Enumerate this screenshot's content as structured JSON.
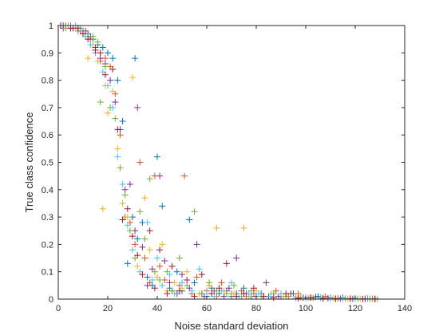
{
  "chart_data": {
    "type": "scatter",
    "title": "",
    "xlabel": "Noise standard deviation",
    "ylabel": "True class confidence",
    "xlim": [
      0,
      140
    ],
    "ylim": [
      0,
      1
    ],
    "xticks": [
      0,
      20,
      40,
      60,
      80,
      100,
      120,
      140
    ],
    "yticks": [
      0,
      0.1,
      0.2,
      0.3,
      0.4,
      0.5,
      0.6,
      0.7,
      0.8,
      0.9,
      1
    ],
    "xtick_labels": [
      "0",
      "20",
      "40",
      "60",
      "80",
      "100",
      "120",
      "140"
    ],
    "ytick_labels": [
      "0",
      "0.1",
      "0.2",
      "0.3",
      "0.4",
      "0.5",
      "0.6",
      "0.7",
      "0.8",
      "0.9",
      "1"
    ],
    "grid": false,
    "marker": "+",
    "series": [
      {
        "color": "#0072BD",
        "points": [
          [
            2,
            1
          ],
          [
            5,
            1
          ],
          [
            8,
            0.99
          ],
          [
            10,
            0.98
          ],
          [
            12,
            0.97
          ],
          [
            14,
            0.95
          ],
          [
            16,
            0.93
          ],
          [
            18,
            0.92
          ],
          [
            20,
            0.9
          ],
          [
            22,
            0.88
          ],
          [
            24,
            0.8
          ],
          [
            26,
            0.65
          ],
          [
            28,
            0.13
          ],
          [
            30,
            0.3
          ],
          [
            31,
            0.88
          ],
          [
            32,
            0.22
          ],
          [
            34,
            0.28
          ],
          [
            36,
            0.08
          ],
          [
            38,
            0.05
          ],
          [
            40,
            0.52
          ],
          [
            42,
            0.34
          ],
          [
            45,
            0.04
          ],
          [
            48,
            0.1
          ],
          [
            50,
            0.03
          ],
          [
            53,
            0.29
          ],
          [
            55,
            0.06
          ],
          [
            58,
            0.02
          ],
          [
            60,
            0.01
          ],
          [
            62,
            0.04
          ],
          [
            65,
            0.02
          ],
          [
            68,
            0.03
          ],
          [
            70,
            0.01
          ],
          [
            72,
            0.02
          ],
          [
            75,
            0.04
          ],
          [
            78,
            0.01
          ],
          [
            82,
            0.02
          ],
          [
            85,
            0.01
          ],
          [
            90,
            0.01
          ],
          [
            95,
            0.02
          ],
          [
            100,
            0.005
          ],
          [
            105,
            0.01
          ],
          [
            110,
            0.005
          ],
          [
            115,
            0.005
          ],
          [
            120,
            0.003
          ],
          [
            125,
            0.002
          ],
          [
            128,
            0.001
          ]
        ]
      },
      {
        "color": "#D95319",
        "points": [
          [
            3,
            1
          ],
          [
            6,
            0.99
          ],
          [
            9,
            0.99
          ],
          [
            11,
            0.97
          ],
          [
            13,
            0.95
          ],
          [
            15,
            0.9
          ],
          [
            17,
            0.87
          ],
          [
            19,
            0.88
          ],
          [
            21,
            0.85
          ],
          [
            23,
            0.75
          ],
          [
            25,
            0.6
          ],
          [
            27,
            0.3
          ],
          [
            29,
            0.28
          ],
          [
            31,
            0.2
          ],
          [
            33,
            0.5
          ],
          [
            35,
            0.15
          ],
          [
            37,
            0.06
          ],
          [
            39,
            0.45
          ],
          [
            41,
            0.12
          ],
          [
            43,
            0.07
          ],
          [
            46,
            0.03
          ],
          [
            49,
            0.05
          ],
          [
            51,
            0.45
          ],
          [
            54,
            0.02
          ],
          [
            56,
            0.08
          ],
          [
            60,
            0.03
          ],
          [
            64,
            0.01
          ],
          [
            66,
            0.06
          ],
          [
            70,
            0.02
          ],
          [
            74,
            0.03
          ],
          [
            76,
            0.01
          ],
          [
            79,
            0.02
          ],
          [
            83,
            0.01
          ],
          [
            88,
            0.03
          ],
          [
            93,
            0.01
          ],
          [
            97,
            0.02
          ],
          [
            102,
            0.005
          ],
          [
            108,
            0.01
          ],
          [
            113,
            0.003
          ],
          [
            118,
            0.002
          ],
          [
            124,
            0.001
          ],
          [
            127,
            0.001
          ]
        ]
      },
      {
        "color": "#EDB120",
        "points": [
          [
            1,
            1
          ],
          [
            4,
            1
          ],
          [
            7,
            0.99
          ],
          [
            10,
            0.97
          ],
          [
            12,
            0.88
          ],
          [
            14,
            0.93
          ],
          [
            16,
            0.87
          ],
          [
            18,
            0.33
          ],
          [
            19,
            0.78
          ],
          [
            20,
            0.68
          ],
          [
            22,
            0.76
          ],
          [
            24,
            0.55
          ],
          [
            26,
            0.35
          ],
          [
            28,
            0.3
          ],
          [
            30,
            0.81
          ],
          [
            32,
            0.12
          ],
          [
            35,
            0.37
          ],
          [
            37,
            0.18
          ],
          [
            40,
            0.08
          ],
          [
            42,
            0.2
          ],
          [
            44,
            0.03
          ],
          [
            47,
            0.06
          ],
          [
            50,
            0.04
          ],
          [
            52,
            0.1
          ],
          [
            57,
            0.02
          ],
          [
            61,
            0.05
          ],
          [
            64,
            0.26
          ],
          [
            67,
            0.03
          ],
          [
            71,
            0.02
          ],
          [
            75,
            0.26
          ],
          [
            77,
            0.01
          ],
          [
            80,
            0.03
          ],
          [
            86,
            0.02
          ],
          [
            91,
            0.01
          ],
          [
            96,
            0.01
          ],
          [
            101,
            0.004
          ],
          [
            106,
            0.006
          ],
          [
            111,
            0.003
          ],
          [
            117,
            0.002
          ],
          [
            122,
            0.001
          ],
          [
            126,
            0.001
          ]
        ]
      },
      {
        "color": "#7E2F8E",
        "points": [
          [
            2,
            0.99
          ],
          [
            6,
            0.99
          ],
          [
            9,
            0.98
          ],
          [
            11,
            0.98
          ],
          [
            13,
            0.96
          ],
          [
            15,
            0.92
          ],
          [
            17,
            0.88
          ],
          [
            19,
            0.86
          ],
          [
            21,
            0.8
          ],
          [
            23,
            0.72
          ],
          [
            25,
            0.62
          ],
          [
            27,
            0.4
          ],
          [
            29,
            0.42
          ],
          [
            31,
            0.25
          ],
          [
            32,
            0.7
          ],
          [
            34,
            0.19
          ],
          [
            36,
            0.05
          ],
          [
            38,
            0.11
          ],
          [
            41,
            0.45
          ],
          [
            43,
            0.14
          ],
          [
            45,
            0.06
          ],
          [
            48,
            0.02
          ],
          [
            50,
            0.09
          ],
          [
            53,
            0.04
          ],
          [
            56,
            0.2
          ],
          [
            59,
            0.01
          ],
          [
            63,
            0.03
          ],
          [
            67,
            0.01
          ],
          [
            69,
            0.04
          ],
          [
            72,
            0.15
          ],
          [
            76,
            0.02
          ],
          [
            80,
            0.01
          ],
          [
            84,
            0.06
          ],
          [
            89,
            0.01
          ],
          [
            94,
            0.02
          ],
          [
            99,
            0.005
          ],
          [
            104,
            0.008
          ],
          [
            109,
            0.003
          ],
          [
            114,
            0.002
          ],
          [
            119,
            0.001
          ],
          [
            124,
            0.001
          ]
        ]
      },
      {
        "color": "#77AC30",
        "points": [
          [
            3,
            0.99
          ],
          [
            5,
            1
          ],
          [
            8,
            0.98
          ],
          [
            10,
            0.98
          ],
          [
            12,
            0.96
          ],
          [
            14,
            0.96
          ],
          [
            16,
            0.94
          ],
          [
            17,
            0.72
          ],
          [
            19,
            0.85
          ],
          [
            21,
            0.7
          ],
          [
            23,
            0.66
          ],
          [
            25,
            0.48
          ],
          [
            27,
            0.38
          ],
          [
            29,
            0.25
          ],
          [
            31,
            0.15
          ],
          [
            33,
            0.32
          ],
          [
            35,
            0.22
          ],
          [
            37,
            0.44
          ],
          [
            39,
            0.1
          ],
          [
            41,
            0.07
          ],
          [
            44,
            0.1
          ],
          [
            46,
            0.03
          ],
          [
            49,
            0.15
          ],
          [
            52,
            0.05
          ],
          [
            55,
            0.32
          ],
          [
            58,
            0.02
          ],
          [
            61,
            0.06
          ],
          [
            64,
            0.03
          ],
          [
            68,
            0.02
          ],
          [
            71,
            0.05
          ],
          [
            74,
            0.01
          ],
          [
            78,
            0.03
          ],
          [
            82,
            0.01
          ],
          [
            87,
            0.02
          ],
          [
            92,
            0.01
          ],
          [
            98,
            0.006
          ],
          [
            103,
            0.004
          ],
          [
            107,
            0.005
          ],
          [
            112,
            0.002
          ],
          [
            116,
            0.002
          ],
          [
            121,
            0.001
          ],
          [
            126,
            0.001
          ],
          [
            129,
            0.0005
          ]
        ]
      },
      {
        "color": "#4DBEEE",
        "points": [
          [
            4,
            1
          ],
          [
            7,
            1
          ],
          [
            9,
            0.99
          ],
          [
            11,
            0.96
          ],
          [
            13,
            0.93
          ],
          [
            15,
            0.9
          ],
          [
            18,
            0.83
          ],
          [
            20,
            0.78
          ],
          [
            22,
            0.7
          ],
          [
            24,
            0.52
          ],
          [
            26,
            0.42
          ],
          [
            28,
            0.27
          ],
          [
            30,
            0.18
          ],
          [
            33,
            0.1
          ],
          [
            36,
            0.28
          ],
          [
            38,
            0.07
          ],
          [
            40,
            0.15
          ],
          [
            42,
            0.05
          ],
          [
            45,
            0.09
          ],
          [
            47,
            0.02
          ],
          [
            50,
            0.06
          ],
          [
            54,
            0.03
          ],
          [
            57,
            0.11
          ],
          [
            60,
            0.02
          ],
          [
            63,
            0.01
          ],
          [
            66,
            0.03
          ],
          [
            70,
            0.06
          ],
          [
            73,
            0.01
          ],
          [
            77,
            0.02
          ],
          [
            81,
            0.02
          ],
          [
            86,
            0.01
          ],
          [
            90,
            0.02
          ],
          [
            96,
            0.004
          ],
          [
            100,
            0.003
          ],
          [
            106,
            0.005
          ],
          [
            110,
            0.002
          ],
          [
            115,
            0.001
          ],
          [
            120,
            0.001
          ],
          [
            125,
            0.0008
          ]
        ]
      },
      {
        "color": "#A2142F",
        "points": [
          [
            1,
            1
          ],
          [
            5,
            0.99
          ],
          [
            8,
            0.99
          ],
          [
            10,
            0.97
          ],
          [
            12,
            0.95
          ],
          [
            15,
            0.91
          ],
          [
            17,
            0.9
          ],
          [
            19,
            0.82
          ],
          [
            22,
            0.84
          ],
          [
            24,
            0.62
          ],
          [
            26,
            0.29
          ],
          [
            28,
            0.33
          ],
          [
            30,
            0.23
          ],
          [
            32,
            0.16
          ],
          [
            34,
            0.09
          ],
          [
            37,
            0.25
          ],
          [
            39,
            0.04
          ],
          [
            41,
            0.18
          ],
          [
            44,
            0.02
          ],
          [
            46,
            0.12
          ],
          [
            49,
            0.03
          ],
          [
            52,
            0.07
          ],
          [
            55,
            0.01
          ],
          [
            58,
            0.09
          ],
          [
            62,
            0.02
          ],
          [
            65,
            0.04
          ],
          [
            68,
            0.13
          ],
          [
            72,
            0.01
          ],
          [
            75,
            0.02
          ],
          [
            79,
            0.04
          ],
          [
            83,
            0.01
          ],
          [
            87,
            0.005
          ],
          [
            92,
            0.02
          ],
          [
            97,
            0.003
          ],
          [
            102,
            0.006
          ],
          [
            107,
            0.002
          ],
          [
            112,
            0.001
          ],
          [
            118,
            0.001
          ],
          [
            123,
            0.0005
          ],
          [
            128,
            0.0003
          ]
        ]
      }
    ]
  }
}
